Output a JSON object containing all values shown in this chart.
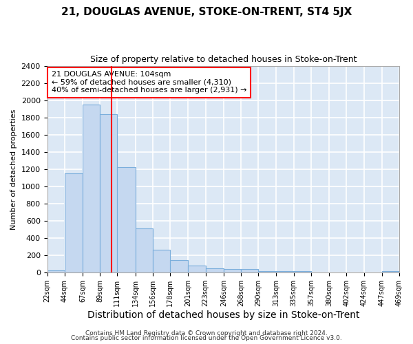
{
  "title": "21, DOUGLAS AVENUE, STOKE-ON-TRENT, ST4 5JX",
  "subtitle": "Size of property relative to detached houses in Stoke-on-Trent",
  "xlabel": "Distribution of detached houses by size in Stoke-on-Trent",
  "ylabel": "Number of detached properties",
  "annotation_line1": "21 DOUGLAS AVENUE: 104sqm",
  "annotation_line2": "← 59% of detached houses are smaller (4,310)",
  "annotation_line3": "40% of semi-detached houses are larger (2,931) →",
  "footer_line1": "Contains HM Land Registry data © Crown copyright and database right 2024.",
  "footer_line2": "Contains public sector information licensed under the Open Government Licence v3.0.",
  "bar_color": "#c5d8f0",
  "bar_edge_color": "#7aaedc",
  "bg_color": "#dce8f5",
  "red_line_x": 104,
  "bin_edges": [
    22,
    44,
    67,
    89,
    111,
    134,
    156,
    178,
    201,
    223,
    246,
    268,
    290,
    313,
    335,
    357,
    380,
    402,
    424,
    447,
    469
  ],
  "counts": [
    30,
    1150,
    1950,
    1840,
    1220,
    510,
    270,
    150,
    80,
    50,
    45,
    40,
    20,
    20,
    15,
    0,
    0,
    0,
    0,
    20
  ],
  "ylim": [
    0,
    2400
  ],
  "yticks": [
    0,
    200,
    400,
    600,
    800,
    1000,
    1200,
    1400,
    1600,
    1800,
    2000,
    2200,
    2400
  ],
  "title_fontsize": 11,
  "subtitle_fontsize": 9,
  "ylabel_fontsize": 8,
  "xlabel_fontsize": 10,
  "ytick_fontsize": 8,
  "xtick_fontsize": 7,
  "annotation_fontsize": 8,
  "footer_fontsize": 6.5
}
